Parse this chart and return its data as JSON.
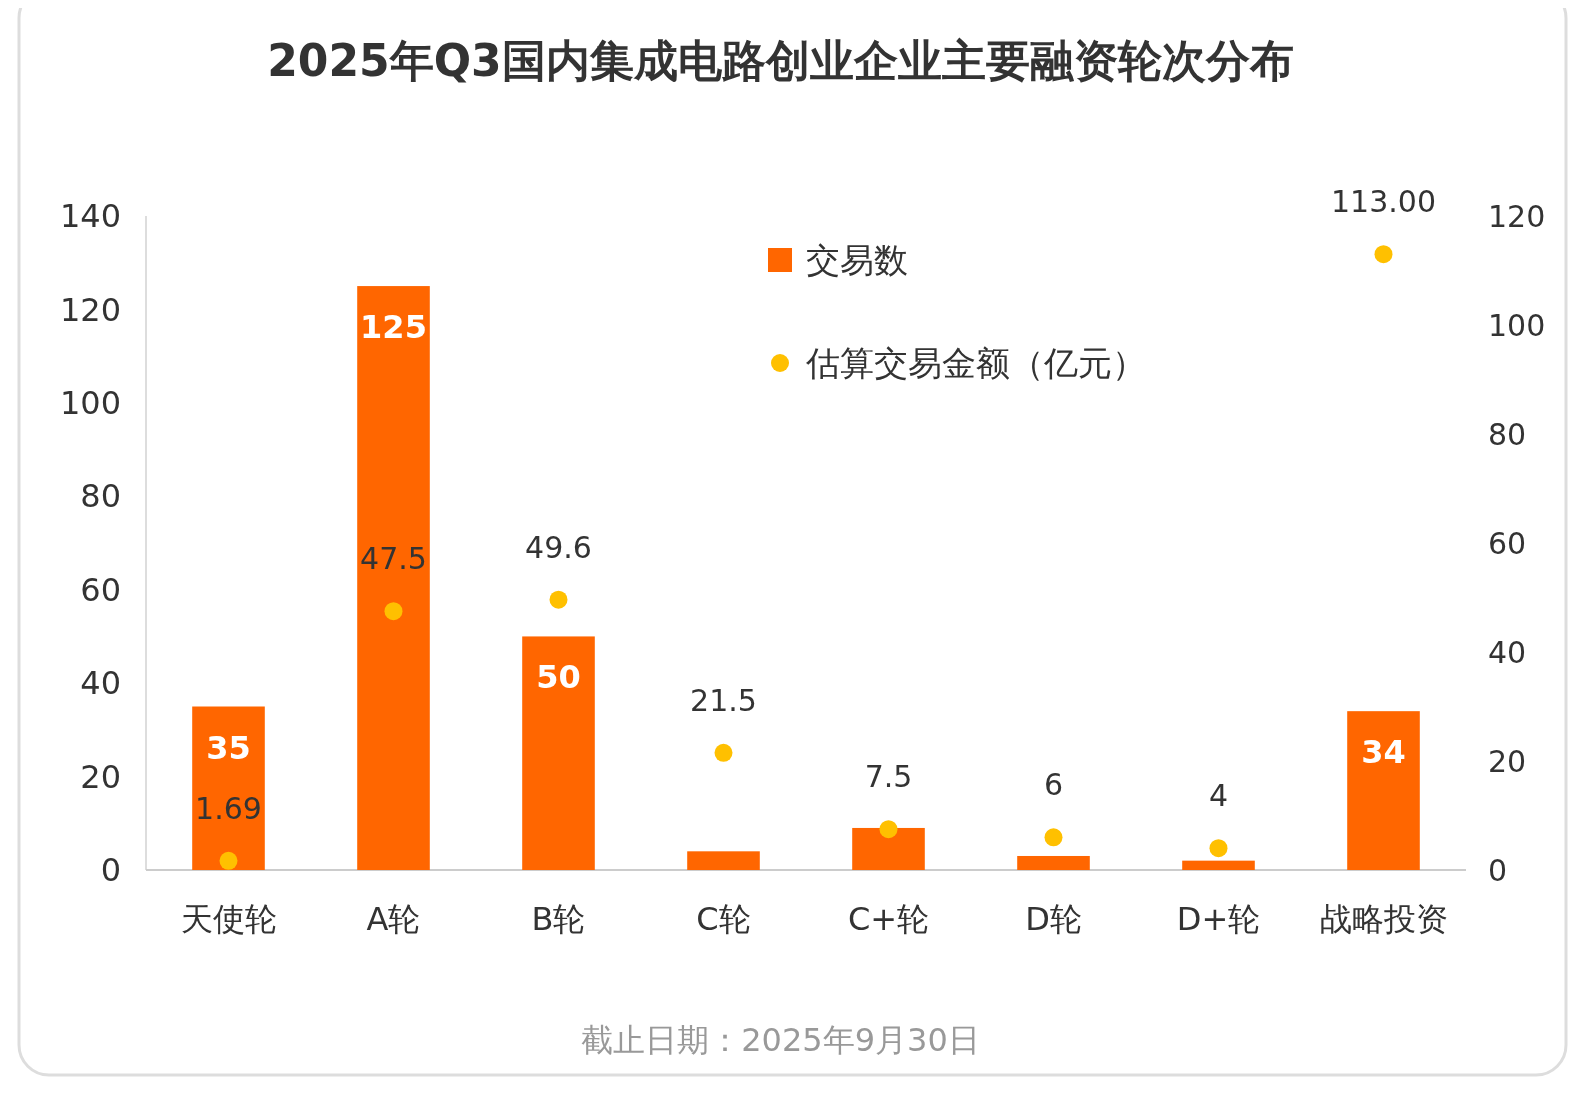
{
  "chart_data": {
    "type": "bar",
    "title": "2025年Q3国内集成电路创业企业主要融资轮次分布",
    "categories": [
      "天使轮",
      "A轮",
      "B轮",
      "C轮",
      "C+轮",
      "D轮",
      "D+轮",
      "战略投资"
    ],
    "series": [
      {
        "name": "交易数",
        "color": "#ff6600",
        "values": [
          35,
          125,
          50,
          4,
          9,
          3,
          2,
          34
        ],
        "value_labels": [
          "35",
          "125",
          "50",
          null,
          null,
          null,
          null,
          "34"
        ]
      },
      {
        "name": "估算交易金额（亿元）",
        "type": "scatter",
        "axis": "y2",
        "color": "#ffc000",
        "values": [
          1.69,
          47.5,
          49.6,
          21.5,
          7.5,
          6,
          4,
          113.0
        ],
        "value_labels": [
          "1.69",
          "47.5",
          "49.6",
          "21.5",
          "7.5",
          "6",
          "4",
          "113.00"
        ]
      }
    ],
    "ylim": [
      0,
      140
    ],
    "yticks": [
      0,
      20,
      40,
      60,
      80,
      100,
      120,
      140
    ],
    "y2lim": [
      0,
      120
    ],
    "y2ticks": [
      0,
      20,
      40,
      60,
      80,
      100,
      120
    ],
    "legend": "top",
    "grid": false,
    "marker": "circle",
    "annotations": [
      "截止日期：2025年9月30日"
    ]
  }
}
